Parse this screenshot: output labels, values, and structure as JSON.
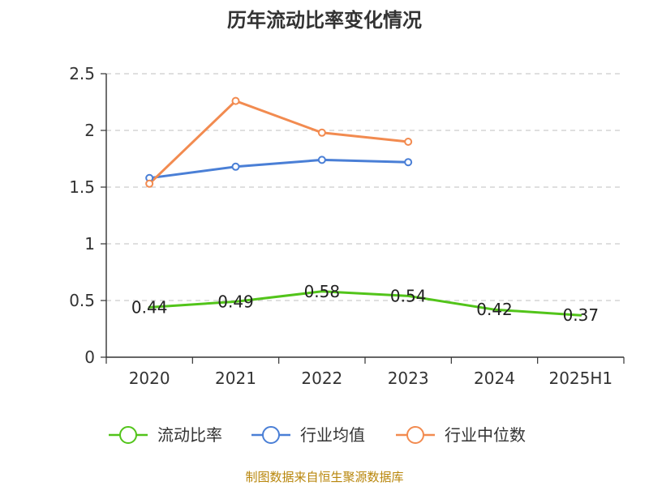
{
  "chart_data": {
    "type": "line",
    "title": "历年流动比率变化情况",
    "categories": [
      "2020",
      "2021",
      "2022",
      "2023",
      "2024",
      "2025H1"
    ],
    "y_ticks": [
      "0",
      "0.5",
      "1",
      "1.5",
      "2",
      "2.5"
    ],
    "ylim": [
      0,
      2.5
    ],
    "grid": true,
    "legend_position": "bottom",
    "series": [
      {
        "name": "流动比率",
        "color": "#52c41a",
        "values": [
          0.44,
          0.49,
          0.58,
          0.54,
          0.42,
          0.37
        ],
        "labels": [
          "0.44",
          "0.49",
          "0.58",
          "0.54",
          "0.42",
          "0.37"
        ]
      },
      {
        "name": "行业均值",
        "color": "#4a7fd6",
        "values": [
          1.58,
          1.68,
          1.74,
          1.72,
          null,
          null
        ]
      },
      {
        "name": "行业中位数",
        "color": "#f28b50",
        "values": [
          1.53,
          2.26,
          1.98,
          1.9,
          null,
          null
        ]
      }
    ]
  },
  "source": "制图数据来自恒生聚源数据库"
}
